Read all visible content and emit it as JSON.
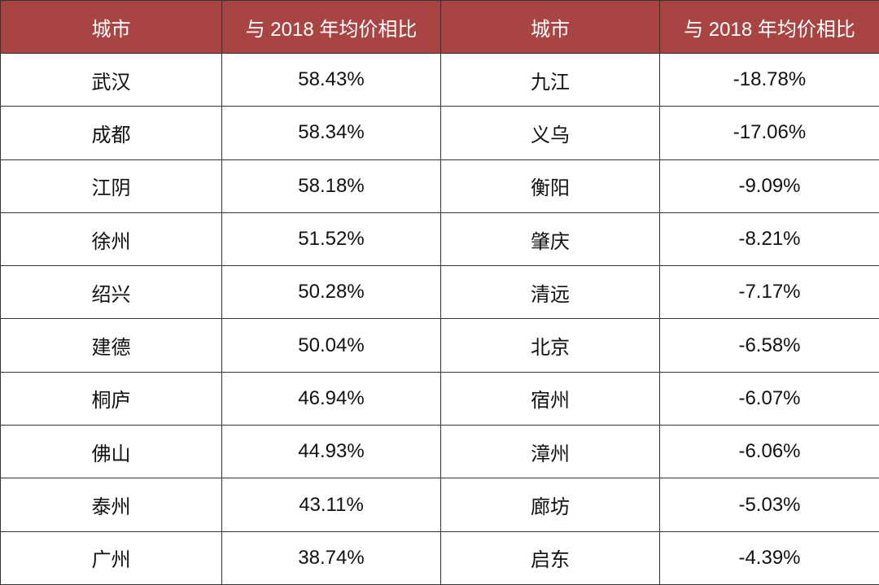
{
  "table": {
    "header": [
      "城市",
      "与 2018 年均价相比",
      "城市",
      "与 2018 年均价相比"
    ],
    "rows": [
      [
        "武汉",
        "58.43%",
        "九江",
        "-18.78%"
      ],
      [
        "成都",
        "58.34%",
        "义乌",
        "-17.06%"
      ],
      [
        "江阴",
        "58.18%",
        "衡阳",
        "-9.09%"
      ],
      [
        "徐州",
        "51.52%",
        "肇庆",
        "-8.21%"
      ],
      [
        "绍兴",
        "50.28%",
        "清远",
        "-7.17%"
      ],
      [
        "建德",
        "50.04%",
        "北京",
        "-6.58%"
      ],
      [
        "桐庐",
        "46.94%",
        "宿州",
        "-6.07%"
      ],
      [
        "佛山",
        "44.93%",
        "漳州",
        "-6.06%"
      ],
      [
        "泰州",
        "43.11%",
        "廊坊",
        "-5.03%"
      ],
      [
        "广州",
        "38.74%",
        "启东",
        "-4.39%"
      ]
    ]
  }
}
